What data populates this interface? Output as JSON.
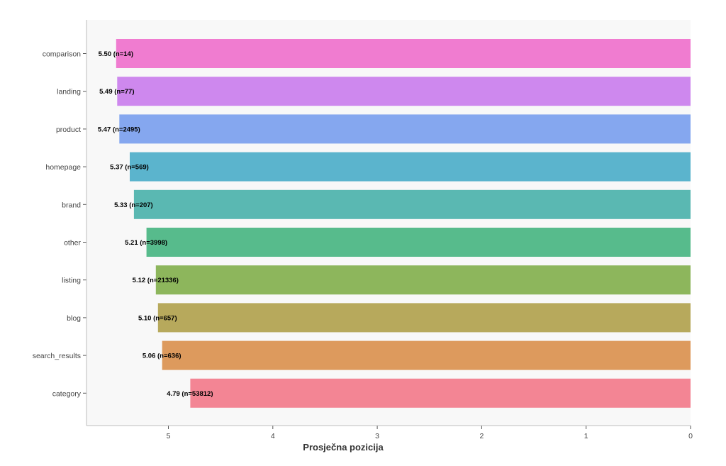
{
  "chart_data": {
    "type": "bar",
    "orientation": "horizontal",
    "xlabel": "Prosječna pozicija",
    "ylabel": "",
    "xlim": [
      5.8,
      0
    ],
    "x_inverted": true,
    "x_ticks": [
      5,
      4,
      3,
      2,
      1,
      0
    ],
    "grid": false,
    "categories": [
      "comparison",
      "landing",
      "product",
      "homepage",
      "brand",
      "other",
      "listing",
      "blog",
      "search_results",
      "category"
    ],
    "values": [
      5.5,
      5.49,
      5.47,
      5.37,
      5.33,
      5.21,
      5.12,
      5.1,
      5.06,
      4.79
    ],
    "counts": [
      14,
      77,
      2495,
      569,
      207,
      3998,
      21336,
      657,
      636,
      53812
    ],
    "data_labels": [
      "5.50 (n=14)",
      "5.49 (n=77)",
      "5.47 (n=2495)",
      "5.37 (n=569)",
      "5.33 (n=207)",
      "5.21 (n=3998)",
      "5.12 (n=21336)",
      "5.10 (n=657)",
      "5.06 (n=636)",
      "4.79 (n=53812)"
    ],
    "colors": [
      "#f07cd0",
      "#ce88ee",
      "#85a7ef",
      "#5bb4cd",
      "#5ab8b2",
      "#57bb8c",
      "#8db65c",
      "#b7a95c",
      "#dd9a5d",
      "#f38594"
    ]
  }
}
